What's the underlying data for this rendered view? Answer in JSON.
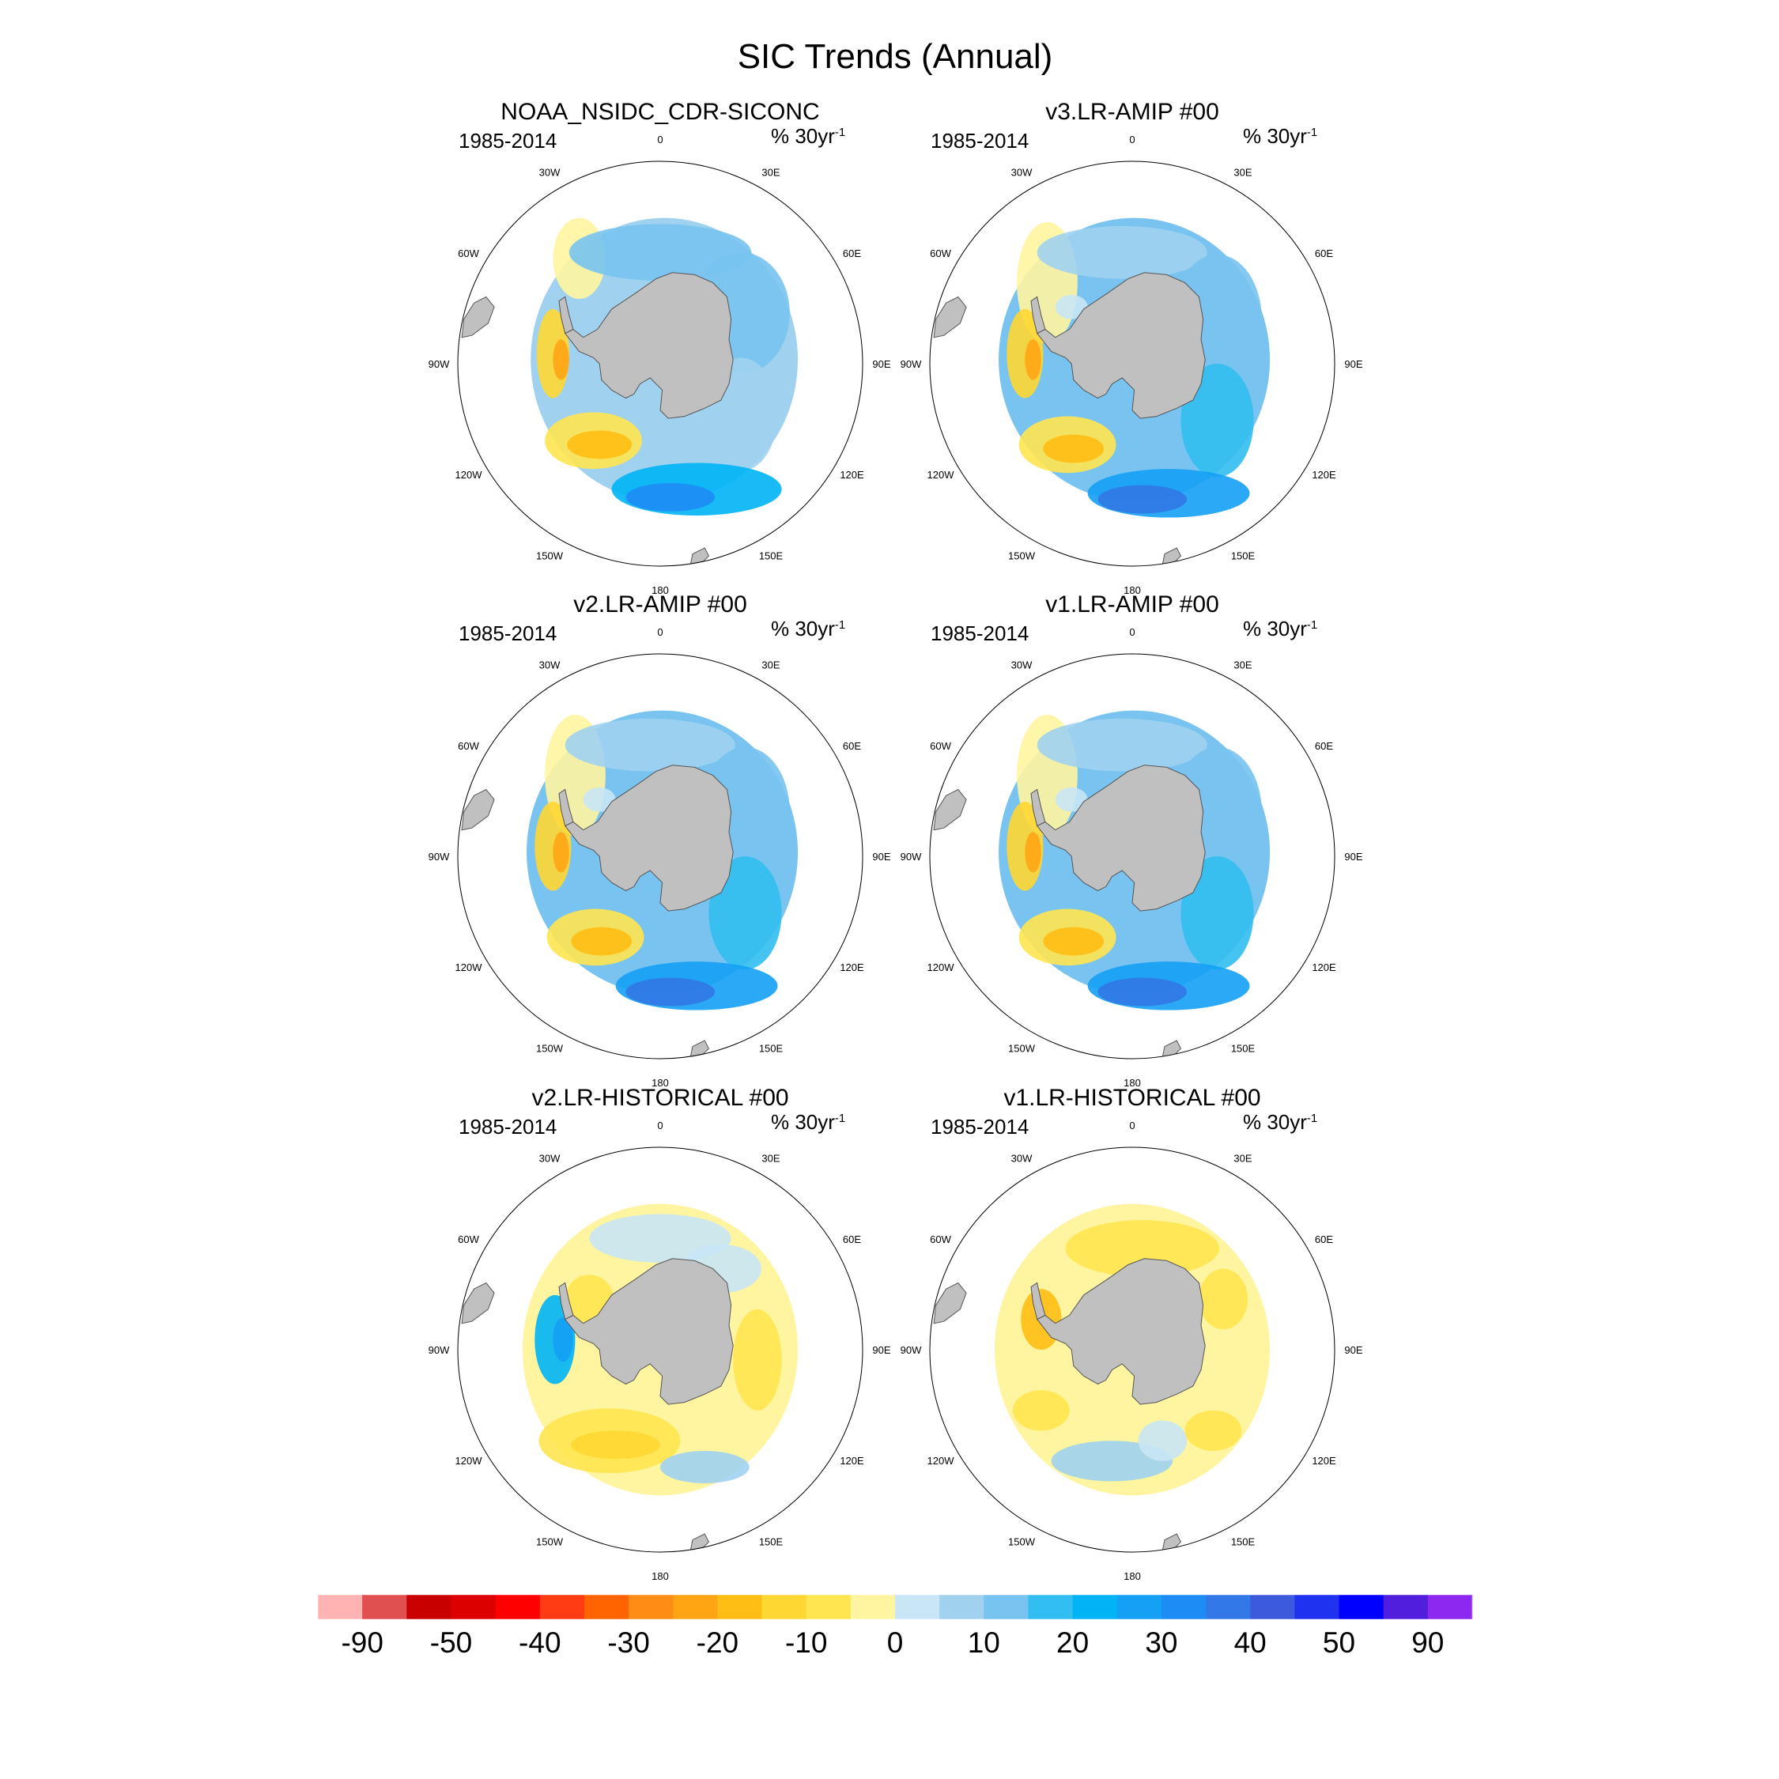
{
  "figure": {
    "title": "SIC Trends (Annual)"
  },
  "colors": {
    "land": "#c0c0c0",
    "land_stroke": "#555555",
    "ocean": "#ffffff",
    "frame": "#000000"
  },
  "panels": [
    {
      "id": "noaa",
      "title": "NOAA_NSIDC_CDR-SICONC",
      "period": "1985-2014",
      "unit": "% 30yr",
      "unit_exp": "-1",
      "pattern": "obs"
    },
    {
      "id": "v3amip",
      "title": "v3.LR-AMIP  #00",
      "period": "1985-2014",
      "unit": "% 30yr",
      "unit_exp": "-1",
      "pattern": "amip"
    },
    {
      "id": "v2amip",
      "title": "v2.LR-AMIP  #00",
      "period": "1985-2014",
      "unit": "% 30yr",
      "unit_exp": "-1",
      "pattern": "amip"
    },
    {
      "id": "v1amip",
      "title": "v1.LR-AMIP  #00",
      "period": "1985-2014",
      "unit": "% 30yr",
      "unit_exp": "-1",
      "pattern": "amip"
    },
    {
      "id": "v2hist",
      "title": "v2.LR-HISTORICAL  #00",
      "period": "1985-2014",
      "unit": "% 30yr",
      "unit_exp": "-1",
      "pattern": "hist2"
    },
    {
      "id": "v1hist",
      "title": "v1.LR-HISTORICAL  #00",
      "period": "1985-2014",
      "unit": "% 30yr",
      "unit_exp": "-1",
      "pattern": "hist1"
    }
  ],
  "longitude_labels": [
    "0",
    "30E",
    "60E",
    "90E",
    "120E",
    "150E",
    "180",
    "150W",
    "120W",
    "90W",
    "60W",
    "30W"
  ],
  "colorbar": {
    "colors": [
      "#ffb3b3",
      "#e05050",
      "#c80000",
      "#dd0000",
      "#ff0000",
      "#ff3c14",
      "#ff6400",
      "#ff8c14",
      "#ffa514",
      "#ffbe14",
      "#ffd732",
      "#ffe650",
      "#fff5a0",
      "#c8e6f5",
      "#a0d2f0",
      "#78c3f0",
      "#32bef0",
      "#00b4f5",
      "#14a0f5",
      "#1e8cf5",
      "#3278e6",
      "#3c5adc",
      "#1e32f0",
      "#0000ff",
      "#501edc",
      "#8c28f0"
    ],
    "labels": [
      "-90",
      "-50",
      "-40",
      "-30",
      "-20",
      "-10",
      "0",
      "10",
      "20",
      "30",
      "40",
      "50",
      "90"
    ]
  }
}
